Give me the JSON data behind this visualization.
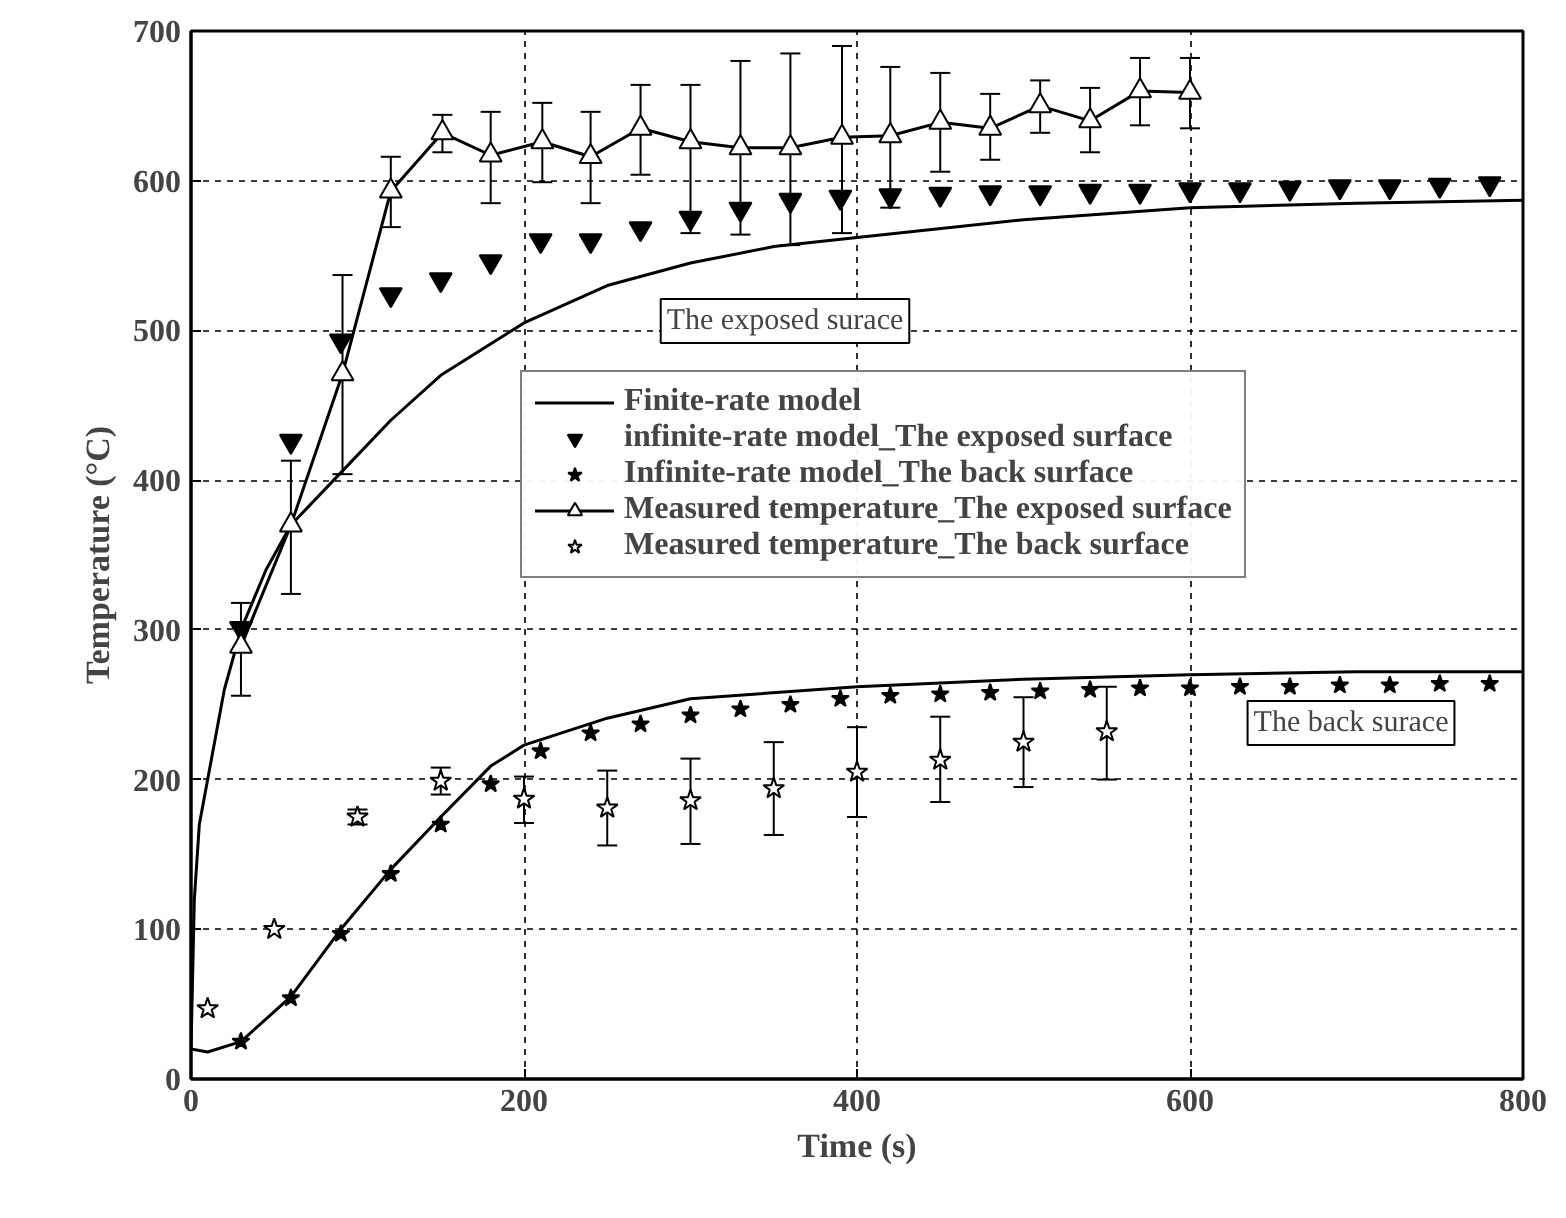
{
  "chart_data": {
    "type": "line",
    "xlabel": "Time (s)",
    "ylabel": "Temperature (°C)",
    "xlim": [
      0,
      800
    ],
    "ylim": [
      0,
      700
    ],
    "xticks": [
      0,
      200,
      400,
      600,
      800
    ],
    "yticks": [
      0,
      100,
      200,
      300,
      400,
      500,
      600,
      700
    ],
    "grid": true,
    "legend": "right",
    "series": [
      {
        "name": "Finite-rate model",
        "color": "#000000",
        "marker": "none",
        "line_style": "solid",
        "x": [
          0,
          2,
          5,
          10,
          20,
          30,
          45,
          60,
          90,
          120,
          150,
          200,
          250,
          300,
          350,
          400,
          500,
          600,
          700,
          800
        ],
        "values": [
          20,
          120,
          170,
          200,
          260,
          300,
          340,
          370,
          405,
          440,
          470,
          505,
          530,
          545,
          556,
          562,
          574,
          582,
          585,
          587
        ]
      },
      {
        "color": "#000000",
        "marker": "none",
        "line_style": "solid",
        "x": [
          0,
          10,
          30,
          60,
          90,
          120,
          150,
          180,
          200,
          250,
          300,
          400,
          500,
          600,
          700,
          800
        ],
        "values": [
          20,
          18,
          25,
          55,
          100,
          140,
          175,
          209,
          223,
          241,
          254,
          262,
          267,
          270,
          272,
          272
        ]
      },
      {
        "name": "infinite-rate model_The exposed surface",
        "type": "scatter",
        "color": "#000000",
        "marker": "triangle",
        "x": [
          30,
          60,
          90,
          120,
          150,
          180,
          210,
          240,
          270,
          300,
          330,
          360,
          390,
          420,
          450,
          480,
          510,
          540,
          570,
          600,
          630,
          660,
          690,
          720,
          750,
          780
        ],
        "values": [
          301,
          426,
          493,
          524,
          534,
          546,
          560,
          560,
          568,
          575,
          581,
          587,
          589,
          590,
          591,
          592,
          592,
          593,
          593,
          594,
          594,
          595,
          596,
          596,
          597,
          598
        ]
      },
      {
        "name": "Infinite-rate model_The back surface",
        "type": "scatter",
        "color": "#000000",
        "marker": "star",
        "x": [
          30,
          60,
          90,
          120,
          150,
          180,
          210,
          240,
          270,
          300,
          330,
          360,
          390,
          420,
          450,
          480,
          510,
          540,
          570,
          600,
          630,
          660,
          690,
          720,
          750,
          780
        ],
        "values": [
          25,
          54,
          97,
          137,
          170,
          197,
          219,
          231,
          237,
          243,
          247,
          250,
          254,
          256,
          257,
          258,
          259,
          260,
          261,
          261,
          262,
          262,
          263,
          263,
          264,
          264
        ]
      },
      {
        "name": "Measured temperature_The exposed surface",
        "color": "#000000",
        "marker": "triangle",
        "line_style": "solid",
        "x": [
          30,
          60,
          91,
          120,
          151,
          180,
          211,
          240,
          270,
          300,
          330,
          360,
          391,
          420,
          450,
          480,
          510,
          540,
          570,
          600
        ],
        "values": [
          289,
          370,
          471,
          593,
          632,
          617,
          626,
          616,
          635,
          626,
          622,
          622,
          629,
          630,
          639,
          635,
          650,
          640,
          660,
          659
        ],
        "errors": [
          [
            256,
            318
          ],
          [
            324,
            413
          ],
          [
            404,
            537
          ],
          [
            569,
            616
          ],
          [
            619,
            644
          ],
          [
            585,
            646
          ],
          [
            599,
            652
          ],
          [
            585,
            646
          ],
          [
            604,
            664
          ],
          [
            565,
            664
          ],
          [
            564,
            680
          ],
          [
            557,
            685
          ],
          [
            565,
            690
          ],
          [
            582,
            676
          ],
          [
            606,
            672
          ],
          [
            614,
            658
          ],
          [
            632,
            667
          ],
          [
            619,
            662
          ],
          [
            637,
            682
          ],
          [
            635,
            682
          ]
        ]
      },
      {
        "name": "Measured temperature_The back surface",
        "type": "scatter",
        "color": "#000000",
        "marker": "star",
        "x": [
          10,
          50,
          100,
          150,
          200,
          250,
          300,
          350,
          400,
          450,
          500,
          550
        ],
        "values": [
          47,
          100,
          175,
          199,
          187,
          181,
          186,
          194,
          205,
          213,
          225,
          232
        ],
        "errors": [
          null,
          null,
          [
            170,
            180
          ],
          [
            190,
            208
          ],
          [
            171,
            202
          ],
          [
            156,
            206
          ],
          [
            157,
            214
          ],
          [
            163,
            225
          ],
          [
            175,
            235
          ],
          [
            185,
            242
          ],
          [
            195,
            255
          ],
          [
            200,
            262
          ]
        ]
      }
    ],
    "annotations": [
      "The exposed surace",
      "The back surace"
    ]
  }
}
